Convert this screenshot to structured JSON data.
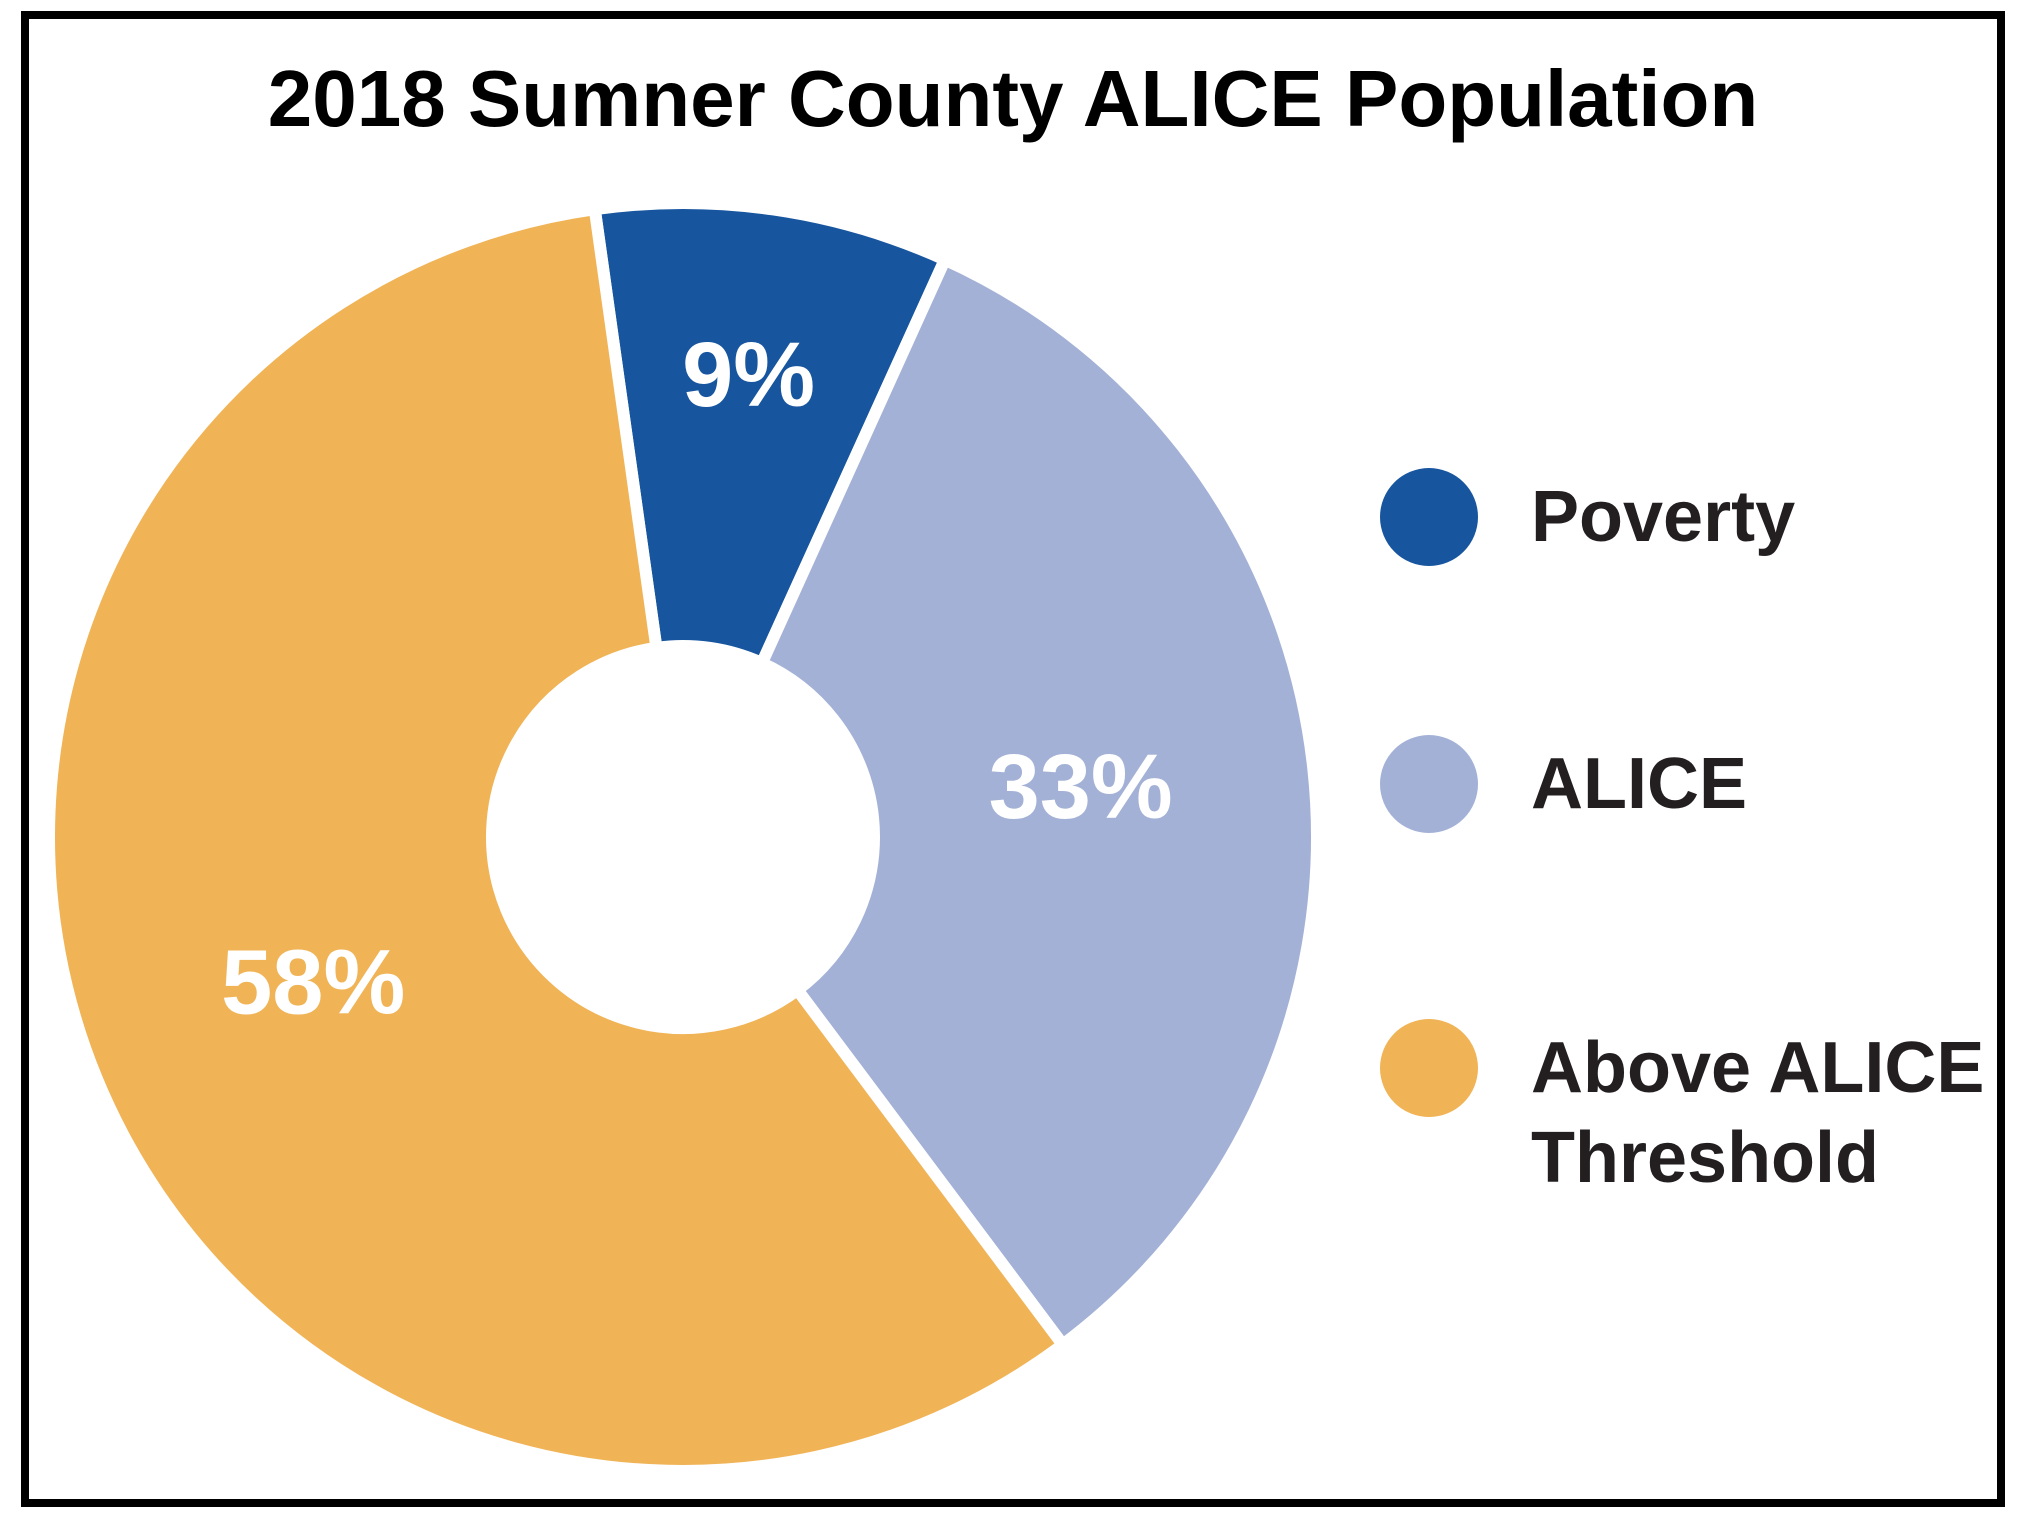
{
  "chart_data": {
    "type": "donut",
    "title": "2018 Sumner County ALICE Population",
    "categories": [
      "Poverty",
      "ALICE",
      "Above ALICE Threshold"
    ],
    "values": [
      9,
      33,
      58
    ],
    "value_labels": [
      "9%",
      "33%",
      "58%"
    ],
    "colors": [
      "#17559f",
      "#a4b1d7",
      "#f0b356"
    ],
    "legend": "right"
  }
}
